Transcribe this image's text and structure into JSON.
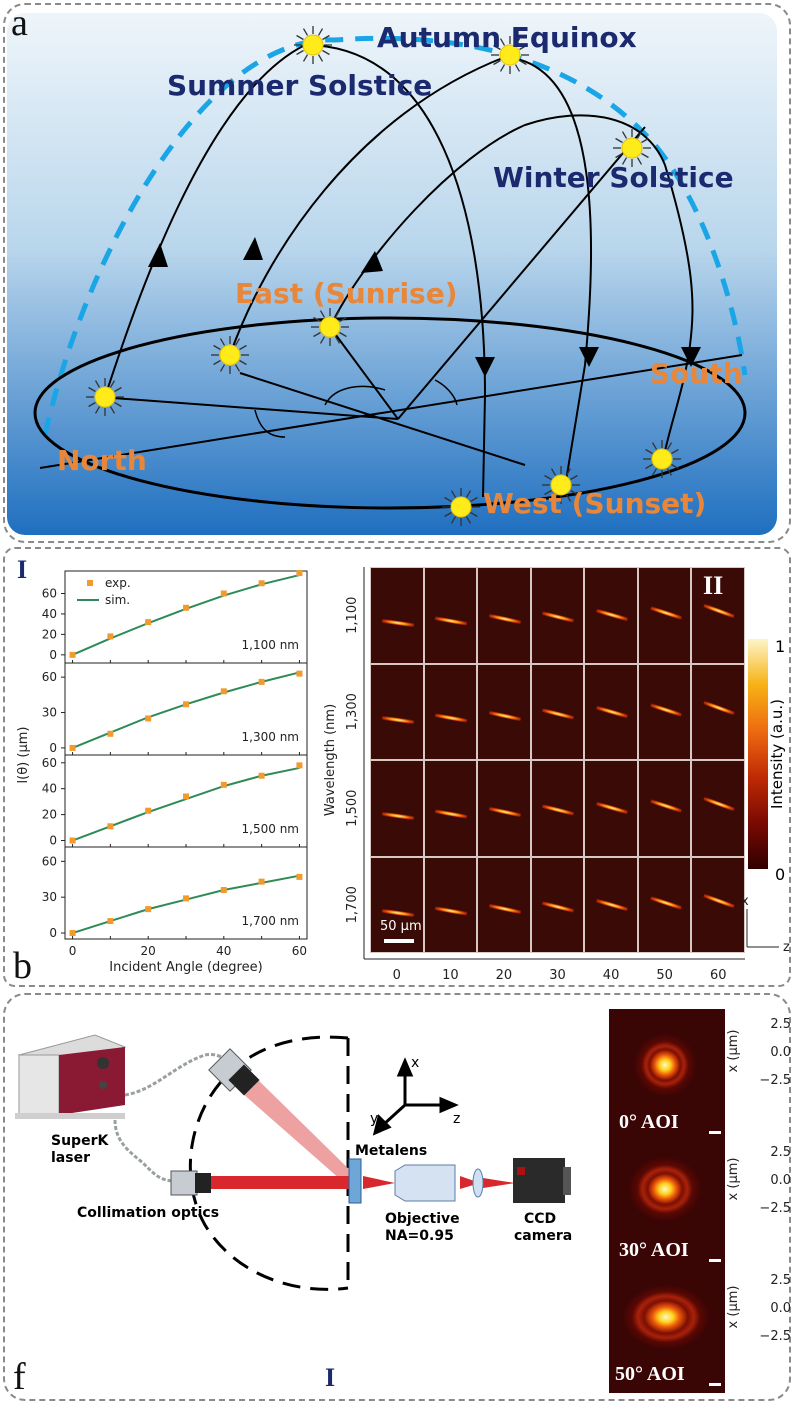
{
  "panel_a": {
    "letter": "a",
    "labels": {
      "summer": "Summer Solstice",
      "autumn": "Autumn Equinox",
      "winter": "Winter Solstice",
      "east": "East (Sunrise)",
      "south": "South",
      "north": "North",
      "west": "West (Sunset)"
    },
    "colors": {
      "sky_top": "#e9f2f8",
      "sky_bottom": "#1f6fc0",
      "dark_label": "#1b2a6e",
      "orange_label": "#e8863a",
      "dashed_arc": "#1aa6e6"
    }
  },
  "panel_b": {
    "letter": "b",
    "part_I": "I",
    "part_II": "II",
    "legend_exp": "exp.",
    "legend_sim": "sim.",
    "ylabel": "l(θ) (μm)",
    "xlabel": "Incident Angle (degree)",
    "xticks": [
      "0",
      "20",
      "40",
      "60"
    ],
    "heatmap_ylabel": "Wavelength (nm)",
    "heatmap_rows": [
      "1,100",
      "1,300",
      "1,500",
      "1,700"
    ],
    "heatmap_cols": [
      "0",
      "10",
      "20",
      "30",
      "40",
      "50",
      "60"
    ],
    "scalebar": "50 μm",
    "colorbar_label": "Intensity (a.u.)",
    "colorbar_max": "1",
    "colorbar_min": "0",
    "axis_x": "x",
    "axis_z": "z"
  },
  "chart_data": {
    "type": "scatter",
    "xlabel": "Incident Angle (degree)",
    "ylabel": "l(θ) (μm)",
    "x": [
      0,
      10,
      20,
      30,
      40,
      50,
      60
    ],
    "xlim": [
      -2,
      62
    ],
    "subplots": [
      {
        "label": "1,100 nm",
        "ylim": [
          -8,
          82
        ],
        "yticks": [
          0,
          20,
          40,
          60
        ],
        "series": [
          {
            "name": "exp.",
            "values": [
              0,
              18,
              32,
              46,
              60,
              70,
              80
            ]
          },
          {
            "name": "sim.",
            "values": [
              0,
              16,
              31,
              45,
              58,
              69,
              78
            ]
          }
        ]
      },
      {
        "label": "1,300 nm",
        "ylim": [
          -6,
          72
        ],
        "yticks": [
          0,
          30,
          60
        ],
        "series": [
          {
            "name": "exp.",
            "values": [
              0,
              12,
              25,
              37,
              48,
              56,
              63
            ]
          },
          {
            "name": "sim.",
            "values": [
              0,
              13,
              26,
              37,
              47,
              56,
              64
            ]
          }
        ]
      },
      {
        "label": "1,500 nm",
        "ylim": [
          -5,
          66
        ],
        "yticks": [
          0,
          20,
          40,
          60
        ],
        "series": [
          {
            "name": "exp.",
            "values": [
              0,
              11,
              23,
              34,
              43,
              50,
              58
            ]
          },
          {
            "name": "sim.",
            "values": [
              0,
              11,
              22,
              32,
              42,
              50,
              56
            ]
          }
        ]
      },
      {
        "label": "1,700 nm",
        "ylim": [
          -5,
          72
        ],
        "yticks": [
          0,
          30,
          60
        ],
        "series": [
          {
            "name": "exp.",
            "values": [
              0,
              10,
              20,
              29,
              36,
              43,
              47
            ]
          },
          {
            "name": "sim.",
            "values": [
              0,
              10,
              20,
              28,
              36,
              42,
              48
            ]
          }
        ]
      }
    ],
    "colors": {
      "exp": "#f29a2e",
      "sim": "#2e8b57"
    },
    "grid": false,
    "legend": "top-left"
  },
  "panel_f": {
    "letter": "f",
    "part_I": "I",
    "superk": "SuperK\nlaser",
    "superk_1": "SuperK",
    "superk_2": "laser",
    "collimation": "Collimation optics",
    "metalens": "Metalens",
    "objective_1": "Objective",
    "objective_2": "NA=0.95",
    "ccd_1": "CCD",
    "ccd_2": "camera",
    "axis_x": "x",
    "axis_y": "y",
    "axis_z": "z",
    "aoi": [
      "0° AOI",
      "30° AOI",
      "50° AOI"
    ],
    "ylabel": "x (μm)",
    "yticks": [
      "2.5",
      "0.0",
      "−2.5"
    ]
  }
}
